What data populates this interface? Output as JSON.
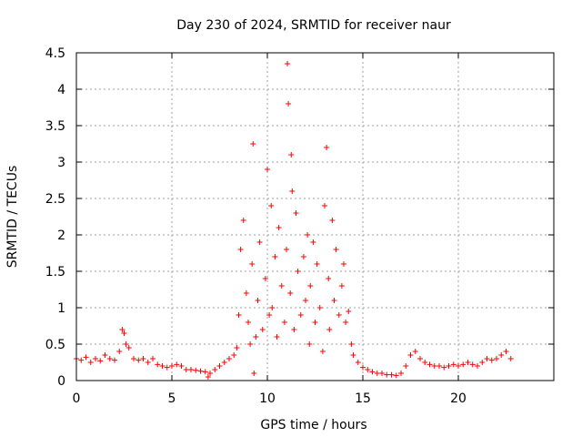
{
  "chart_data": {
    "type": "scatter",
    "title": "Day 230 of 2024, SRMTID for receiver naur",
    "xlabel": "GPS time / hours",
    "ylabel": "SRMTID / TECUs",
    "xlim": [
      0,
      25
    ],
    "ylim": [
      0,
      4.5
    ],
    "x_ticks": [
      0,
      5,
      10,
      15,
      20
    ],
    "x_tick_labels": [
      "0",
      "5",
      "10",
      "15",
      "20"
    ],
    "y_ticks": [
      0,
      0.5,
      1,
      1.5,
      2,
      2.5,
      3,
      3.5,
      4,
      4.5
    ],
    "y_tick_labels": [
      "0",
      "0.5",
      "1",
      "1.5",
      "2",
      "2.5",
      "3",
      "3.5",
      "4",
      "4.5"
    ],
    "grid": true,
    "marker": "+",
    "color": "#ff0000",
    "series": [
      {
        "name": "SRMTID",
        "x": [
          0.0,
          0.25,
          0.5,
          0.75,
          1.0,
          1.25,
          1.5,
          1.75,
          2.0,
          2.25,
          2.4,
          2.5,
          2.6,
          2.75,
          3.0,
          3.25,
          3.5,
          3.75,
          4.0,
          4.25,
          4.5,
          4.75,
          5.0,
          5.25,
          5.5,
          5.75,
          6.0,
          6.25,
          6.5,
          6.75,
          6.9,
          7.0,
          7.25,
          7.5,
          7.75,
          8.0,
          8.25,
          8.4,
          8.5,
          8.6,
          8.75,
          8.9,
          9.0,
          9.1,
          9.2,
          9.25,
          9.3,
          9.4,
          9.5,
          9.6,
          9.75,
          9.9,
          10.0,
          10.1,
          10.2,
          10.25,
          10.4,
          10.5,
          10.6,
          10.75,
          10.9,
          11.0,
          11.05,
          11.1,
          11.2,
          11.25,
          11.3,
          11.4,
          11.5,
          11.6,
          11.75,
          11.9,
          12.0,
          12.1,
          12.2,
          12.25,
          12.4,
          12.5,
          12.6,
          12.75,
          12.9,
          13.0,
          13.1,
          13.2,
          13.25,
          13.4,
          13.5,
          13.6,
          13.75,
          13.9,
          14.0,
          14.1,
          14.25,
          14.4,
          14.5,
          14.75,
          15.0,
          15.25,
          15.5,
          15.75,
          16.0,
          16.25,
          16.5,
          16.75,
          17.0,
          17.25,
          17.5,
          17.75,
          18.0,
          18.25,
          18.5,
          18.75,
          19.0,
          19.25,
          19.5,
          19.75,
          20.0,
          20.25,
          20.5,
          20.75,
          21.0,
          21.25,
          21.5,
          21.75,
          22.0,
          22.25,
          22.5,
          22.75
        ],
        "y": [
          0.3,
          0.28,
          0.32,
          0.25,
          0.3,
          0.27,
          0.35,
          0.3,
          0.28,
          0.4,
          0.7,
          0.65,
          0.5,
          0.45,
          0.3,
          0.28,
          0.3,
          0.25,
          0.3,
          0.22,
          0.2,
          0.18,
          0.2,
          0.22,
          0.2,
          0.15,
          0.15,
          0.14,
          0.13,
          0.12,
          0.05,
          0.1,
          0.15,
          0.2,
          0.25,
          0.3,
          0.35,
          0.45,
          0.9,
          1.8,
          2.2,
          1.2,
          0.8,
          0.5,
          1.6,
          3.25,
          0.1,
          0.6,
          1.1,
          1.9,
          0.7,
          1.4,
          2.9,
          0.9,
          2.4,
          1.0,
          1.7,
          0.6,
          2.1,
          1.3,
          0.8,
          1.8,
          4.35,
          3.8,
          1.2,
          3.1,
          2.6,
          0.7,
          2.3,
          1.5,
          0.9,
          1.7,
          1.1,
          2.0,
          0.5,
          1.3,
          1.9,
          0.8,
          1.6,
          1.0,
          0.4,
          2.4,
          3.2,
          1.4,
          0.7,
          2.2,
          1.1,
          1.8,
          0.9,
          1.3,
          1.6,
          0.8,
          0.95,
          0.5,
          0.35,
          0.25,
          0.18,
          0.15,
          0.12,
          0.1,
          0.1,
          0.08,
          0.08,
          0.07,
          0.1,
          0.2,
          0.35,
          0.4,
          0.3,
          0.25,
          0.22,
          0.2,
          0.2,
          0.18,
          0.2,
          0.22,
          0.2,
          0.22,
          0.25,
          0.22,
          0.2,
          0.25,
          0.3,
          0.28,
          0.3,
          0.35,
          0.4,
          0.3
        ]
      }
    ]
  }
}
